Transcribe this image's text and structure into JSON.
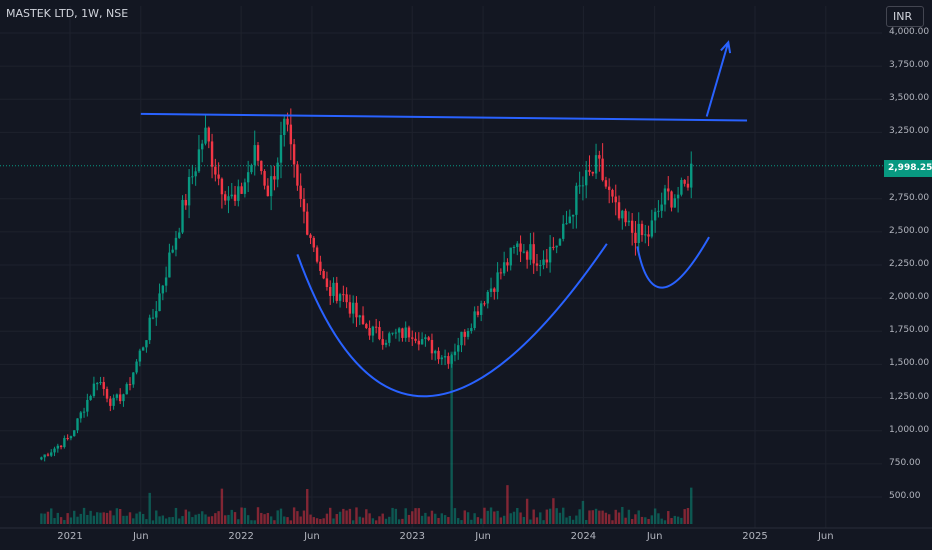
{
  "header": {
    "title": "MASTEK LTD, 1W, NSE",
    "currency": "INR"
  },
  "colors": {
    "up": "#089981",
    "down": "#f23645",
    "drawing": "#2962ff",
    "background": "#131722",
    "last_price_line": "#089981"
  },
  "last_price": {
    "label": "2,998.25",
    "value": 2998.25
  },
  "chart_data": {
    "type": "candlestick",
    "title": "MASTEK LTD, 1W, NSE",
    "y_axis": {
      "position": "right",
      "ticks": [
        500,
        750,
        1000,
        1250,
        1500,
        1750,
        2000,
        2250,
        2500,
        2750,
        3250,
        3500,
        3750,
        4000
      ],
      "tick_labels": [
        "500.00",
        "750.00",
        "1,000.00",
        "1,250.00",
        "1,500.00",
        "1,750.00",
        "2,000.00",
        "2,250.00",
        "2,500.00",
        "2,750.00",
        "3,250.00",
        "3,500.00",
        "3,750.00",
        "4,000.00"
      ],
      "range": [
        480,
        4050
      ]
    },
    "x_axis": {
      "ticks": [
        "2021-01-01",
        "2021-06-01",
        "2022-01-01",
        "2022-06-01",
        "2023-01-01",
        "2023-06-01",
        "2024-01-01",
        "2024-06-01",
        "2025-01-01",
        "2025-06-01"
      ],
      "tick_labels": [
        "2021",
        "Jun",
        "2022",
        "Jun",
        "2023",
        "Jun",
        "2024",
        "Jun",
        "2025",
        "Jun"
      ]
    },
    "price_series": [
      [
        "2020-11-01",
        800
      ],
      [
        "2021-01-01",
        950
      ],
      [
        "2021-03-01",
        1400
      ],
      [
        "2021-04-01",
        1200
      ],
      [
        "2021-05-01",
        1300
      ],
      [
        "2021-07-01",
        1900
      ],
      [
        "2021-09-01",
        2700
      ],
      [
        "2021-10-15",
        3250
      ],
      [
        "2021-11-15",
        2900
      ],
      [
        "2021-12-20",
        2700
      ],
      [
        "2022-02-01",
        3100
      ],
      [
        "2022-03-01",
        2800
      ],
      [
        "2022-04-05",
        3300
      ],
      [
        "2022-05-01",
        2800
      ],
      [
        "2022-06-10",
        2350
      ],
      [
        "2022-07-01",
        2050
      ],
      [
        "2022-08-01",
        2050
      ],
      [
        "2022-09-15",
        1800
      ],
      [
        "2022-11-01",
        1700
      ],
      [
        "2023-01-01",
        1750
      ],
      [
        "2023-02-20",
        1600
      ],
      [
        "2023-03-20",
        1550
      ],
      [
        "2023-05-01",
        1800
      ],
      [
        "2023-06-01",
        2000
      ],
      [
        "2023-07-01",
        2150
      ],
      [
        "2023-08-15",
        2400
      ],
      [
        "2023-10-01",
        2300
      ],
      [
        "2023-11-15",
        2450
      ],
      [
        "2023-12-20",
        2800
      ],
      [
        "2024-02-01",
        3000
      ],
      [
        "2024-03-15",
        2600
      ],
      [
        "2024-04-15",
        2500
      ],
      [
        "2024-05-15",
        2450
      ],
      [
        "2024-06-20",
        2750
      ],
      [
        "2024-08-01",
        2800
      ],
      [
        "2024-08-20",
        2998.25
      ]
    ],
    "volume_spikes": [
      [
        "2023-03-27",
        1300
      ]
    ],
    "annotations": [
      {
        "type": "resistance_line",
        "from": [
          "2021-06-01",
          3390
        ],
        "to": [
          "2024-12-15",
          3340
        ]
      },
      {
        "type": "cup_arc",
        "from": [
          "2022-05-01",
          2330
        ],
        "bottom": [
          "2023-02-01",
          1260
        ],
        "to": [
          "2024-02-20",
          2410
        ]
      },
      {
        "type": "handle_arc",
        "from": [
          "2024-04-25",
          2390
        ],
        "bottom": [
          "2024-06-20",
          2080
        ],
        "to": [
          "2024-09-25",
          2460
        ]
      },
      {
        "type": "arrow",
        "from": [
          "2024-09-20",
          3370
        ],
        "to": [
          "2024-11-05",
          3930
        ]
      }
    ]
  }
}
